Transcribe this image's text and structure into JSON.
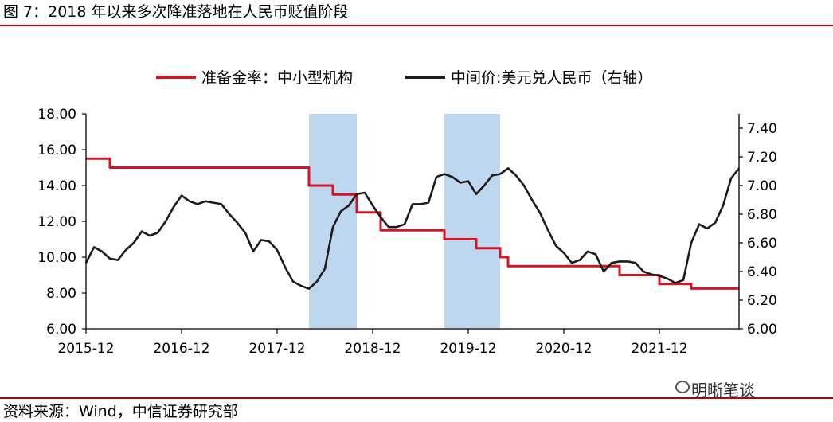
{
  "figure": {
    "title": "图 7：2018 年以来多次降准落地在人民币贬值阶段",
    "source": "资料来源：Wind，中信证券研究部",
    "watermark": "明晰笔谈",
    "watermark_icon": "wechat-icon"
  },
  "colors": {
    "rule": "#c00000",
    "rrr_line": "#d01525",
    "fx_line": "#1f1a17",
    "shade": "#bcd7ee"
  },
  "chart_data": {
    "type": "line",
    "title": "",
    "x_ticks": [
      "2015-12",
      "2016-12",
      "2017-12",
      "2018-12",
      "2019-12",
      "2020-12",
      "2021-12"
    ],
    "x_range": [
      "2015-12",
      "2022-10"
    ],
    "y_left": {
      "range": [
        6,
        18
      ],
      "ticks": [
        "6.00",
        "8.00",
        "10.00",
        "12.00",
        "14.00",
        "16.00",
        "18.00"
      ]
    },
    "y_right": {
      "range": [
        6.0,
        7.5
      ],
      "ticks": [
        "6.00",
        "6.20",
        "6.40",
        "6.60",
        "6.80",
        "7.00",
        "7.20",
        "7.40"
      ],
      "label": ""
    },
    "grid": false,
    "legend_position": "top",
    "shaded_periods": [
      {
        "start": "2018-04",
        "end": "2018-10"
      },
      {
        "start": "2019-09",
        "end": "2020-04"
      }
    ],
    "series": [
      {
        "name": "准备金率：中小型机构",
        "axis": "left",
        "step": true,
        "points": [
          [
            "2015-12",
            15.5
          ],
          [
            "2016-03",
            15.0
          ],
          [
            "2018-04",
            14.0
          ],
          [
            "2018-07",
            13.5
          ],
          [
            "2018-10",
            12.5
          ],
          [
            "2019-01",
            11.5
          ],
          [
            "2019-09",
            11.0
          ],
          [
            "2020-01",
            10.5
          ],
          [
            "2020-04",
            10.0
          ],
          [
            "2020-05",
            9.5
          ],
          [
            "2021-07",
            9.0
          ],
          [
            "2021-12",
            8.5
          ],
          [
            "2022-04",
            8.25
          ],
          [
            "2022-10",
            8.25
          ]
        ]
      },
      {
        "name": "中间价:美元兑人民币（右轴）",
        "axis": "right",
        "step": false,
        "points": [
          [
            "2015-12",
            6.46
          ],
          [
            "2016-01",
            6.57
          ],
          [
            "2016-02",
            6.54
          ],
          [
            "2016-03",
            6.49
          ],
          [
            "2016-04",
            6.48
          ],
          [
            "2016-05",
            6.55
          ],
          [
            "2016-06",
            6.6
          ],
          [
            "2016-07",
            6.68
          ],
          [
            "2016-08",
            6.65
          ],
          [
            "2016-09",
            6.67
          ],
          [
            "2016-10",
            6.75
          ],
          [
            "2016-11",
            6.85
          ],
          [
            "2016-12",
            6.93
          ],
          [
            "2017-01",
            6.89
          ],
          [
            "2017-02",
            6.87
          ],
          [
            "2017-03",
            6.89
          ],
          [
            "2017-04",
            6.88
          ],
          [
            "2017-05",
            6.87
          ],
          [
            "2017-06",
            6.8
          ],
          [
            "2017-07",
            6.74
          ],
          [
            "2017-08",
            6.67
          ],
          [
            "2017-09",
            6.54
          ],
          [
            "2017-10",
            6.62
          ],
          [
            "2017-11",
            6.61
          ],
          [
            "2017-12",
            6.55
          ],
          [
            "2018-01",
            6.43
          ],
          [
            "2018-02",
            6.33
          ],
          [
            "2018-03",
            6.3
          ],
          [
            "2018-04",
            6.28
          ],
          [
            "2018-05",
            6.33
          ],
          [
            "2018-06",
            6.42
          ],
          [
            "2018-07",
            6.71
          ],
          [
            "2018-08",
            6.82
          ],
          [
            "2018-09",
            6.86
          ],
          [
            "2018-10",
            6.94
          ],
          [
            "2018-11",
            6.95
          ],
          [
            "2018-12",
            6.86
          ],
          [
            "2019-01",
            6.78
          ],
          [
            "2019-02",
            6.71
          ],
          [
            "2019-03",
            6.71
          ],
          [
            "2019-04",
            6.73
          ],
          [
            "2019-05",
            6.87
          ],
          [
            "2019-06",
            6.87
          ],
          [
            "2019-07",
            6.88
          ],
          [
            "2019-08",
            7.06
          ],
          [
            "2019-09",
            7.08
          ],
          [
            "2019-10",
            7.06
          ],
          [
            "2019-11",
            7.02
          ],
          [
            "2019-12",
            7.03
          ],
          [
            "2020-01",
            6.94
          ],
          [
            "2020-02",
            7.0
          ],
          [
            "2020-03",
            7.07
          ],
          [
            "2020-04",
            7.08
          ],
          [
            "2020-05",
            7.12
          ],
          [
            "2020-06",
            7.07
          ],
          [
            "2020-07",
            7.0
          ],
          [
            "2020-08",
            6.9
          ],
          [
            "2020-09",
            6.81
          ],
          [
            "2020-10",
            6.69
          ],
          [
            "2020-11",
            6.58
          ],
          [
            "2020-12",
            6.53
          ],
          [
            "2021-01",
            6.46
          ],
          [
            "2021-02",
            6.48
          ],
          [
            "2021-03",
            6.54
          ],
          [
            "2021-04",
            6.52
          ],
          [
            "2021-05",
            6.4
          ],
          [
            "2021-06",
            6.46
          ],
          [
            "2021-07",
            6.47
          ],
          [
            "2021-08",
            6.47
          ],
          [
            "2021-09",
            6.46
          ],
          [
            "2021-10",
            6.4
          ],
          [
            "2021-11",
            6.38
          ],
          [
            "2021-12",
            6.37
          ],
          [
            "2022-01",
            6.35
          ],
          [
            "2022-02",
            6.32
          ],
          [
            "2022-03",
            6.34
          ],
          [
            "2022-04",
            6.6
          ],
          [
            "2022-05",
            6.73
          ],
          [
            "2022-06",
            6.7
          ],
          [
            "2022-07",
            6.74
          ],
          [
            "2022-08",
            6.86
          ],
          [
            "2022-09",
            7.05
          ],
          [
            "2022-10",
            7.12
          ]
        ]
      }
    ]
  }
}
